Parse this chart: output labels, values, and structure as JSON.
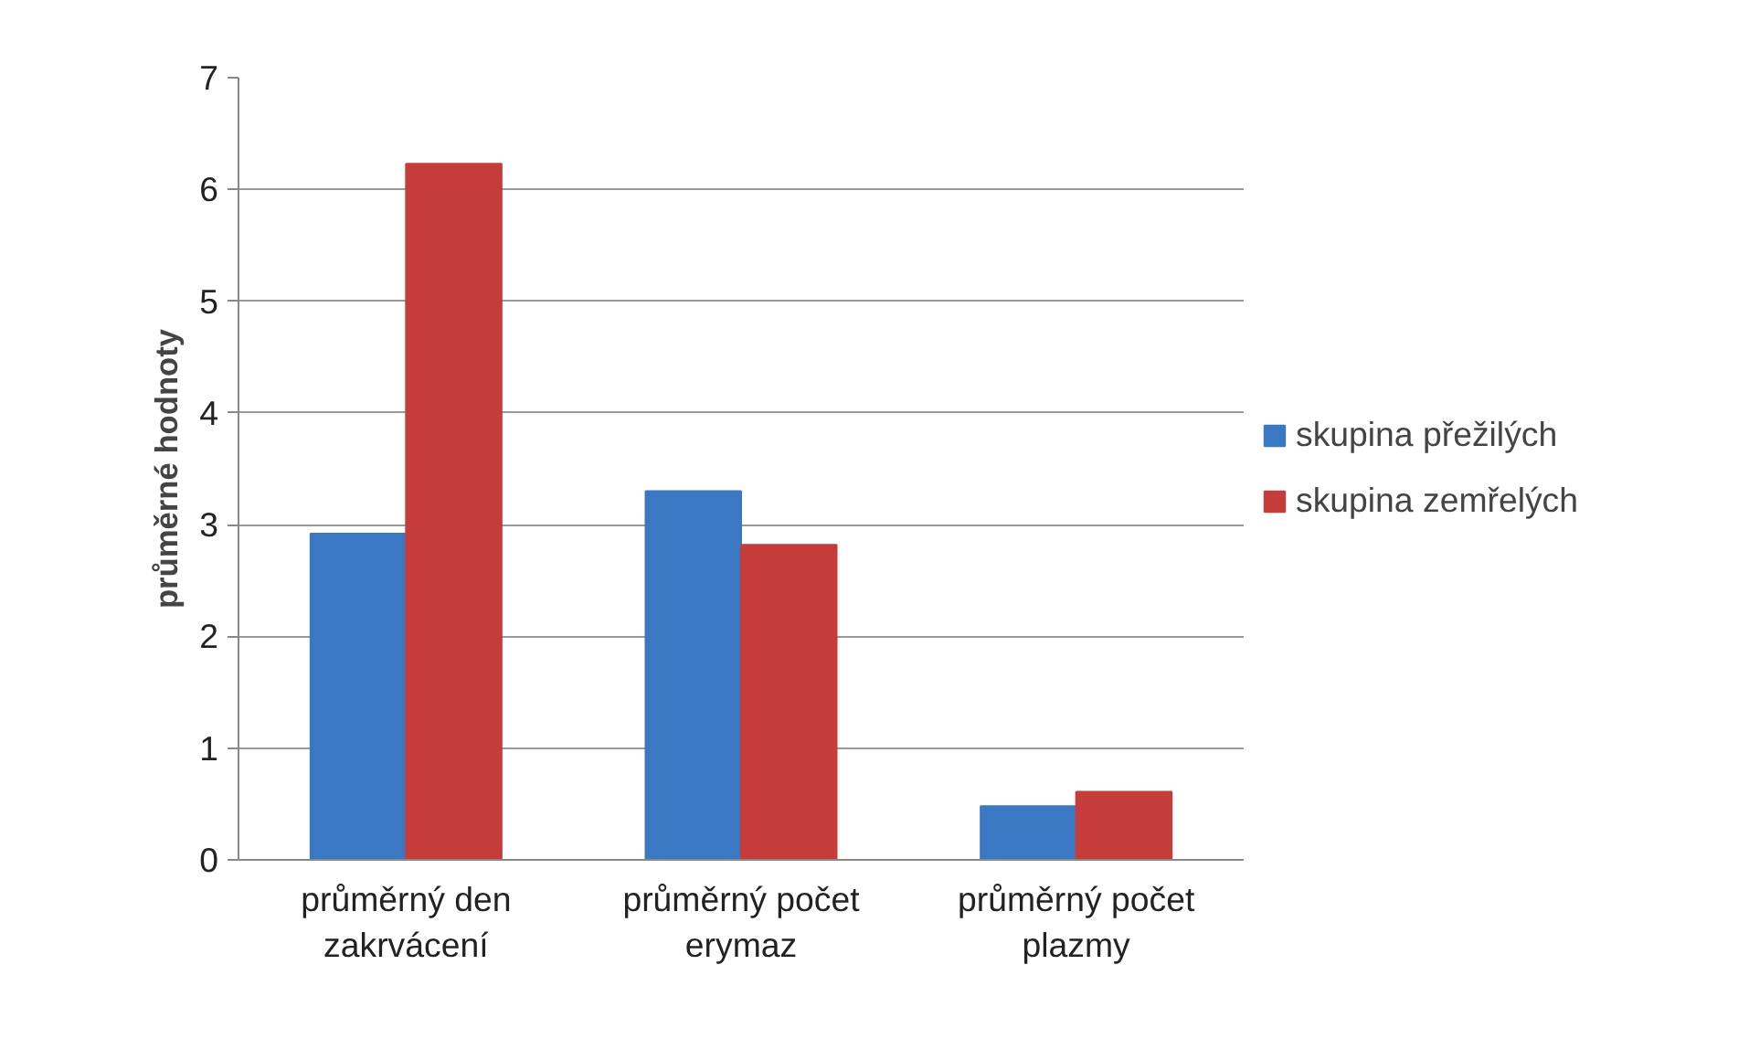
{
  "chart_data": {
    "type": "bar",
    "ylabel": "průměrné hodnoty",
    "categories": [
      "průměrný den\nzakrvácení",
      "průměrný počet\nerymaz",
      "průměrný počet\nplazmy"
    ],
    "series": [
      {
        "name": "skupina přežilých",
        "color": "#3b78c4",
        "values": [
          2.92,
          3.3,
          0.48
        ]
      },
      {
        "name": "skupina zemřelých",
        "color": "#c63c3a",
        "values": [
          6.23,
          2.82,
          0.61
        ]
      }
    ],
    "ylim": [
      0,
      7
    ],
    "yticks": [
      0,
      1,
      2,
      3,
      4,
      5,
      6,
      7
    ],
    "grid": "y",
    "legend": "right"
  }
}
